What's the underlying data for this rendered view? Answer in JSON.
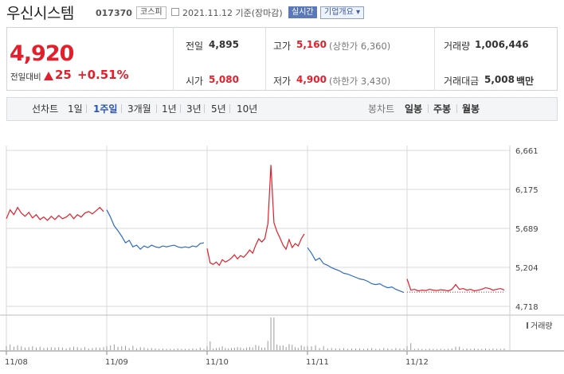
{
  "header": {
    "name": "우신시스템",
    "code": "017370",
    "market": "코스피",
    "date": "2021.11.12 기준(장마감)",
    "live_label": "실시간",
    "corp_label": "기업개요 ▾"
  },
  "quote": {
    "price": "4,920",
    "change_label": "전일대비",
    "change": "25",
    "change_pct": "+0.51%",
    "prev_label": "전일",
    "prev": "4,895",
    "high_label": "고가",
    "high": "5,160",
    "upper_limit": "(상한가 6,360)",
    "volume_label": "거래량",
    "volume": "1,006,446",
    "open_label": "시가",
    "open": "5,080",
    "low_label": "저가",
    "low": "4,900",
    "lower_limit": "(하한가 3,430)",
    "amount_label": "거래대금",
    "amount": "5,008",
    "amount_unit": "백만"
  },
  "tabs": {
    "line_label": "선차트",
    "periods": [
      "1일",
      "1주일",
      "3개월",
      "1년",
      "3년",
      "5년",
      "10년"
    ],
    "selected": "1주일",
    "candle_label": "봉차트",
    "candles": [
      "일봉",
      "주봉",
      "월봉"
    ]
  },
  "colors": {
    "up": "#e21f2b",
    "down": "#2d6bc7",
    "grid": "#d9d9d9"
  },
  "chart_data": {
    "type": "line",
    "title": "",
    "ylim": [
      4718,
      6661
    ],
    "y_ticks": [
      6661,
      6175,
      5689,
      5204,
      4718
    ],
    "y_tick_labels": [
      "6,661",
      "6,175",
      "5,689",
      "5,204",
      "4,718"
    ],
    "x_ticks": [
      "11/08",
      "11/09",
      "11/10",
      "11/11",
      "11/12"
    ],
    "prev_close": 4895,
    "volume_label": "거래량",
    "series": [
      {
        "day": "11/08",
        "direction": "up",
        "values": [
          5810,
          5920,
          5860,
          5950,
          5880,
          5840,
          5890,
          5820,
          5860,
          5800,
          5830,
          5790,
          5840,
          5800,
          5850,
          5810,
          5830,
          5870,
          5810,
          5860,
          5830,
          5880,
          5900,
          5870,
          5910,
          5950,
          5900
        ]
      },
      {
        "day": "11/09",
        "direction": "down",
        "values": [
          5920,
          5830,
          5720,
          5660,
          5590,
          5510,
          5540,
          5460,
          5480,
          5430,
          5470,
          5450,
          5480,
          5460,
          5450,
          5470,
          5460,
          5470,
          5480,
          5460,
          5450,
          5460,
          5450,
          5470,
          5460,
          5500,
          5510
        ]
      },
      {
        "day": "11/10",
        "direction": "up",
        "values": [
          5440,
          5260,
          5240,
          5270,
          5230,
          5300,
          5270,
          5290,
          5320,
          5360,
          5310,
          5350,
          5330,
          5370,
          5420,
          5380,
          5480,
          5560,
          5520,
          5560,
          5750,
          6480,
          5760,
          5650,
          5570,
          5480,
          5430,
          5550,
          5450,
          5500,
          5470,
          5560,
          5620
        ]
      },
      {
        "day": "11/11",
        "direction": "down",
        "values": [
          5450,
          5380,
          5290,
          5320,
          5250,
          5230,
          5200,
          5180,
          5160,
          5130,
          5120,
          5100,
          5080,
          5060,
          5050,
          5030,
          5000,
          4990,
          5000,
          4970,
          4950,
          4960,
          4930,
          4910,
          4890
        ]
      },
      {
        "day": "11/12",
        "direction": "up",
        "values": [
          5060,
          4920,
          4930,
          4910,
          4920,
          4915,
          4930,
          4920,
          4915,
          4925,
          4920,
          4910,
          4930,
          4990,
          4930,
          4940,
          4920,
          4930,
          4910,
          4920,
          4930,
          4950,
          4940,
          4920,
          4930,
          4940,
          4920
        ]
      }
    ]
  }
}
